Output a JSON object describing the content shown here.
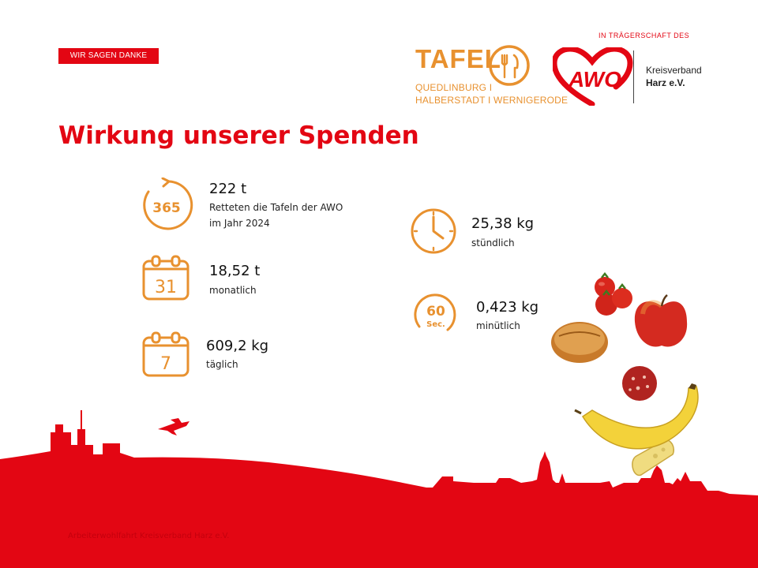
{
  "header": {
    "badge": "WIR SAGEN DANKE",
    "title": "Wirkung unserer Spenden"
  },
  "logos": {
    "tafel": {
      "name": "TAFEL",
      "line1": "QUEDLINBURG I",
      "line2": "HALBERSTADT I WERNIGERODE",
      "icon": "fork-knife-icon"
    },
    "awo": {
      "top": "IN TRÄGERSCHAFT DES",
      "mark": "AWO",
      "org_line1": "Kreisverband",
      "org_line2": "Harz e.V.",
      "icon": "heart-icon"
    }
  },
  "stats": [
    {
      "icon": "year-cycle-icon",
      "icon_text": "365",
      "value": "222 t",
      "label_line1": "Retteten die Tafeln der AWO",
      "label_line2": "im Jahr 2024"
    },
    {
      "icon": "calendar-month-icon",
      "icon_text": "31",
      "value": "18,52 t",
      "label_line1": "monatlich"
    },
    {
      "icon": "calendar-week-icon",
      "icon_text": "7",
      "value": "609,2 kg",
      "label_line1": "täglich"
    },
    {
      "icon": "clock-icon",
      "value": "25,38 kg",
      "label_line1": "stündlich"
    },
    {
      "icon": "timer-60-icon",
      "icon_text": "60",
      "icon_subtext": "Sec.",
      "value": "0,423 kg",
      "label_line1": "minütlich"
    }
  ],
  "footer": {
    "text": "Arbeiterwohlfahrt Kreisverband Harz e.V."
  },
  "colors": {
    "brand_red": "#e30613",
    "tafel_orange": "#e8912f"
  }
}
